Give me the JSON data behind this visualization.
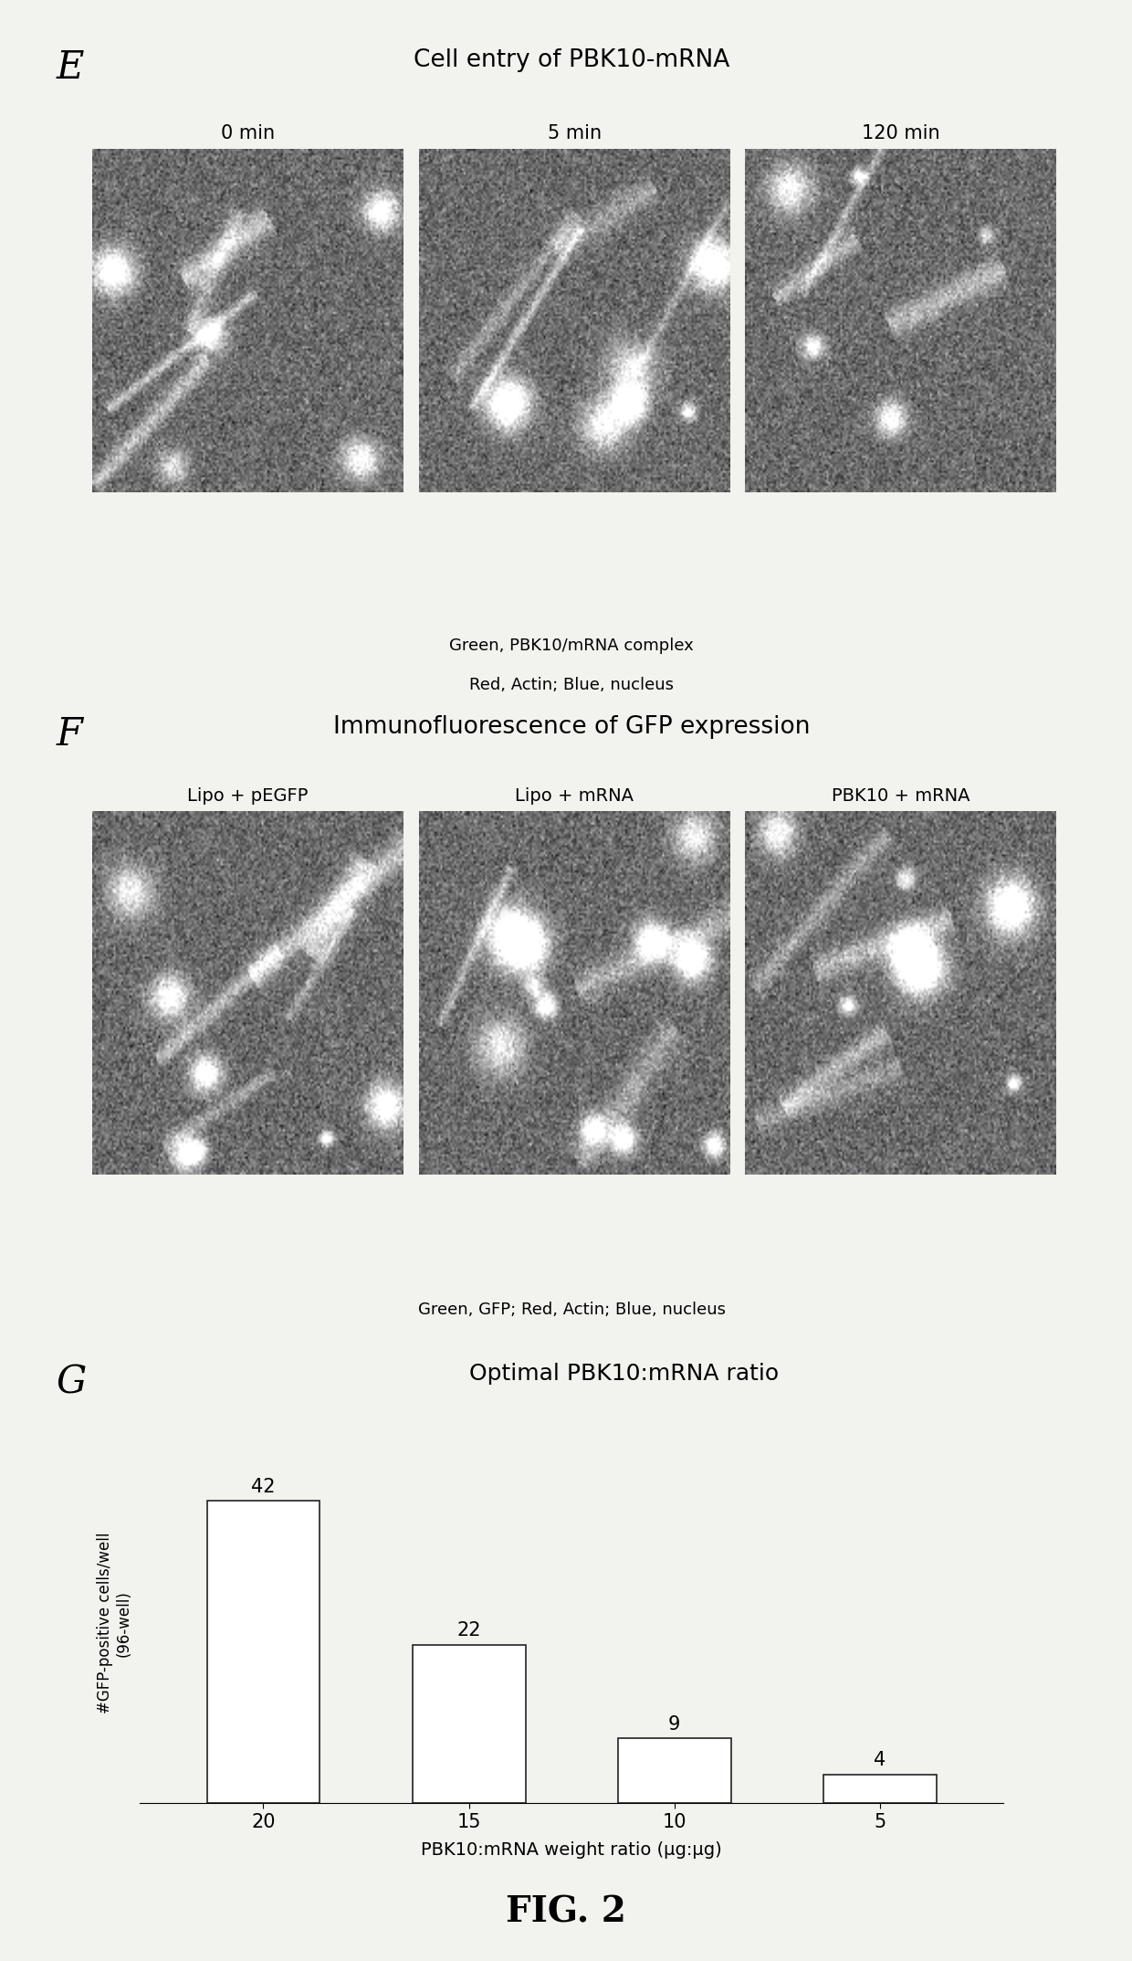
{
  "panel_e_title": "Cell entry of PBK10-mRNA",
  "panel_e_label": "E",
  "panel_e_subtitles": [
    "0 min",
    "5 min",
    "120 min"
  ],
  "panel_e_caption_line1": "Green, PBK10/mRNA complex",
  "panel_e_caption_line2": "Red, Actin; Blue, nucleus",
  "panel_f_title": "Immunofluorescence of GFP expression",
  "panel_f_label": "F",
  "panel_f_subtitles": [
    "Lipo + pEGFP",
    "Lipo + mRNA",
    "PBK10 + mRNA"
  ],
  "panel_f_caption": "Green, GFP; Red, Actin; Blue, nucleus",
  "panel_g_label": "G",
  "panel_g_title": "Optimal PBK10:mRNA ratio",
  "panel_g_categories": [
    "20",
    "15",
    "10",
    "5"
  ],
  "panel_g_values": [
    42,
    22,
    9,
    4
  ],
  "panel_g_xlabel": "PBK10:mRNA weight ratio (μg:μg)",
  "panel_g_ylabel": "#GFP-positive cells/well\n(96-well)",
  "panel_g_ylim": [
    0,
    50
  ],
  "fig_caption": "FIG. 2",
  "bg_color": "#f2f2ee",
  "bar_color": "white",
  "bar_edgecolor": "#222222",
  "e_img_seeds": [
    1,
    2,
    3
  ],
  "f_img_seeds": [
    4,
    5,
    6
  ]
}
